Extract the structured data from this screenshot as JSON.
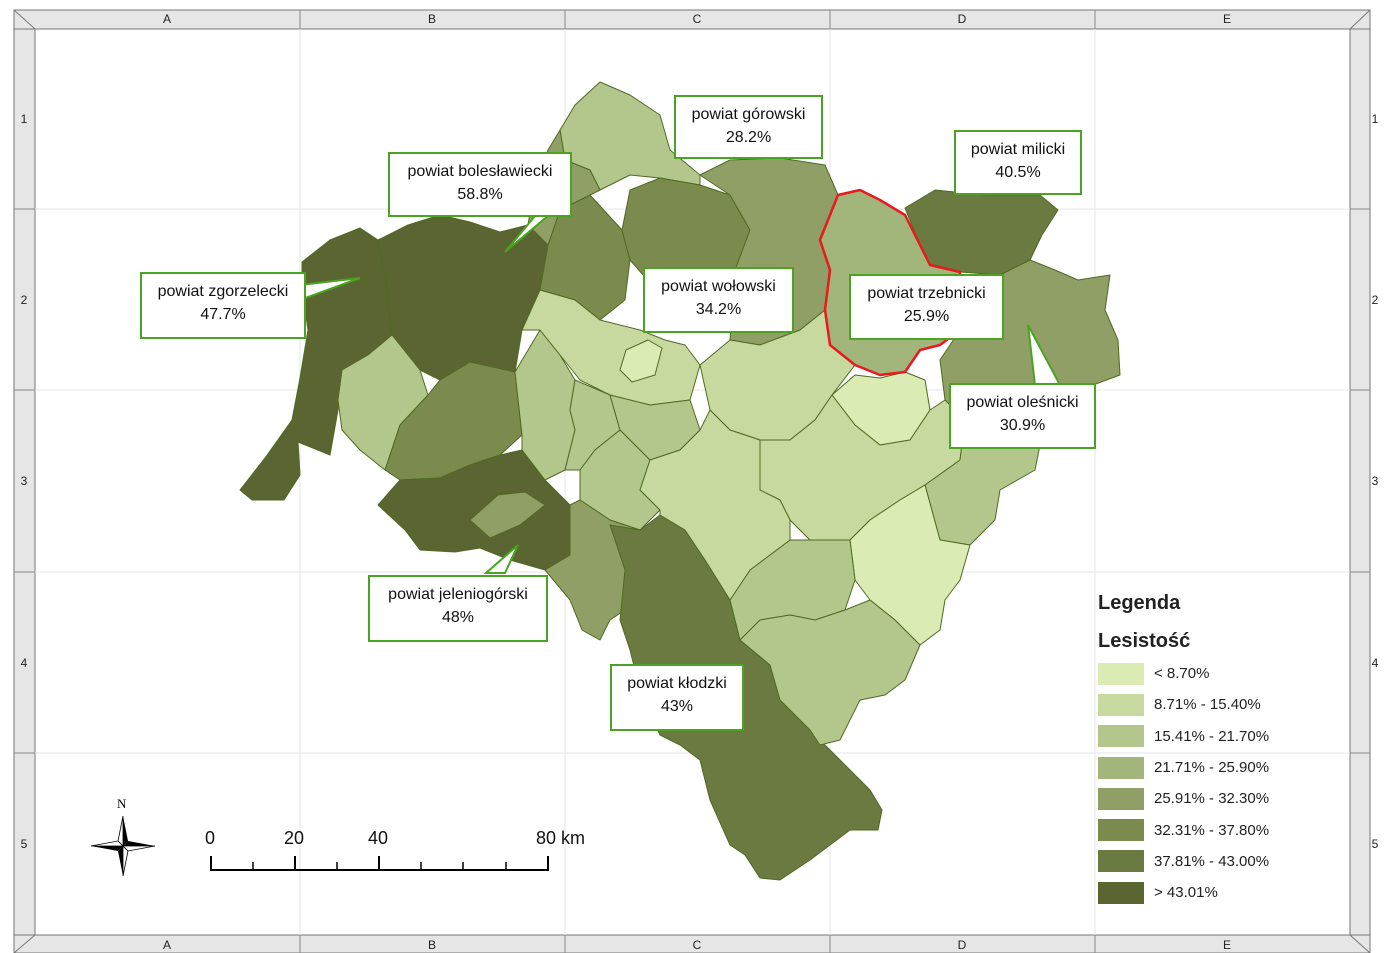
{
  "grid": {
    "columns": [
      "A",
      "B",
      "C",
      "D",
      "E"
    ],
    "rows": [
      "1",
      "2",
      "3",
      "4",
      "5"
    ]
  },
  "legend": {
    "title": "Legenda",
    "subtitle": "Lesistość",
    "classes": [
      {
        "label": "< 8.70%",
        "color": "#daebb4"
      },
      {
        "label": "8.71% - 15.40%",
        "color": "#c7d99e"
      },
      {
        "label": "15.41% - 21.70%",
        "color": "#b3c78c"
      },
      {
        "label": "21.71% - 25.90%",
        "color": "#a2b57a"
      },
      {
        "label": "25.91% - 32.30%",
        "color": "#909f65"
      },
      {
        "label": "32.31% - 37.80%",
        "color": "#7b8a4d"
      },
      {
        "label": "37.81% - 43.00%",
        "color": "#6b7a40"
      },
      {
        "label": "> 43.01%",
        "color": "#5a6531"
      }
    ]
  },
  "callouts": [
    {
      "name": "powiat górowski",
      "value": "28.2%"
    },
    {
      "name": "powiat milicki",
      "value": "40.5%"
    },
    {
      "name": "powiat bolesławiecki",
      "value": "58.8%"
    },
    {
      "name": "powiat zgorzelecki",
      "value": "47.7%"
    },
    {
      "name": "powiat wołowski",
      "value": "34.2%"
    },
    {
      "name": "powiat trzebnicki",
      "value": "25.9%"
    },
    {
      "name": "powiat oleśnicki",
      "value": "30.9%"
    },
    {
      "name": "powiat jeleniogórski",
      "value": "48%"
    },
    {
      "name": "powiat kłodzki",
      "value": "43%"
    }
  ],
  "scale_bar": {
    "ticks": [
      "0",
      "20",
      "40",
      "80 km"
    ]
  },
  "north_arrow": {
    "label": "N",
    "icon": "compass-rose-icon"
  },
  "highlight_color": "#e8191f",
  "callout_border_color": "#4aa321"
}
